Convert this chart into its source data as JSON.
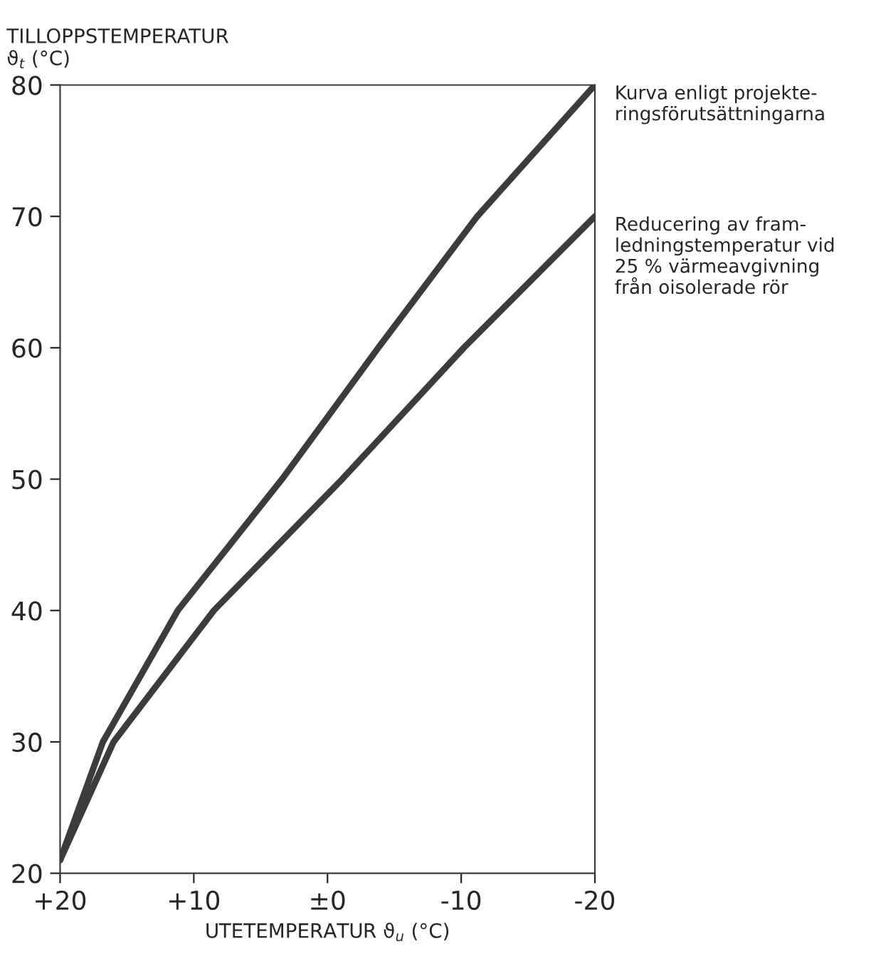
{
  "chart_data": {
    "type": "line",
    "ylabel": "TILLOPPSTEMPERATUR\nϑ$_{t}$ (°C)",
    "xlabel": "UTETEMPERATUR ϑ$_{u}$ (°C)",
    "xlim": [
      20,
      -20
    ],
    "ylim": [
      20,
      80
    ],
    "xticks": [
      {
        "value": 20,
        "label": "+20"
      },
      {
        "value": 10,
        "label": "+10"
      },
      {
        "value": 0,
        "label": "±0"
      },
      {
        "value": -10,
        "label": "-10"
      },
      {
        "value": -20,
        "label": "-20"
      }
    ],
    "yticks": [
      20,
      30,
      40,
      50,
      60,
      70,
      80
    ],
    "grid": false,
    "legend": false,
    "marker": "none",
    "line_style": "solid",
    "series": [
      {
        "name": "Kurva enligt projekte-\nringsförutsättningarna",
        "color": "#3c3c3c",
        "x": [
          20,
          16.8,
          11.2,
          3.4,
          -3.8,
          -11.2,
          -20
        ],
        "values": [
          21,
          30,
          40,
          50,
          60,
          70,
          80
        ]
      },
      {
        "name": "Reducering av fram-\nledningstemperatur vid\n25 % värmeavgivning\nfrån oisolerade rör",
        "color": "#3c3c3c",
        "x": [
          20,
          16.0,
          8.5,
          -1.1,
          -10.2,
          -20
        ],
        "values": [
          21,
          30,
          40,
          50,
          60,
          70
        ]
      }
    ]
  }
}
